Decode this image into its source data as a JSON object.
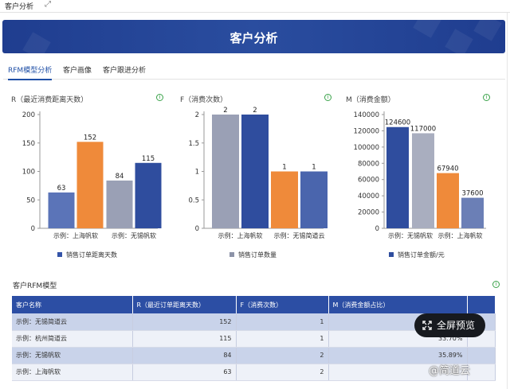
{
  "topbar": {
    "title": "客户分析",
    "expand_icon": "expand-icon"
  },
  "banner": {
    "title": "客户分析"
  },
  "tabs": [
    {
      "label": "RFM模型分析",
      "active": true
    },
    {
      "label": "客户画像",
      "active": false
    },
    {
      "label": "客户跟进分析",
      "active": false
    }
  ],
  "colors": {
    "blue": "#3454a8",
    "orange": "#ef8a3a",
    "gray": "#9aa0b5",
    "header": "#2c4ea4"
  },
  "chart_data": [
    {
      "type": "bar",
      "title": "R（最近消费距离天数）",
      "categories": [
        "示例：上海帆软",
        "示例：无锡帆软"
      ],
      "bar_values": [
        63,
        152,
        84,
        115
      ],
      "bar_colors": [
        "#5b74b8",
        "#ef8a3a",
        "#9aa0b5",
        "#2f4d9e"
      ],
      "ylim": [
        0,
        200
      ],
      "yticks": [
        "0",
        "50",
        "100",
        "150",
        "200"
      ],
      "legend": "销售订单距离天数"
    },
    {
      "type": "bar",
      "title": "F（消费次数）",
      "categories": [
        "示例：上海帆软",
        "示例：无锡简道云"
      ],
      "bar_values": [
        2,
        2,
        1,
        1
      ],
      "bar_colors": [
        "#9aa0b5",
        "#2f4d9e",
        "#ef8a3a",
        "#4a65ad"
      ],
      "ylim": [
        0,
        2
      ],
      "yticks": [
        "0",
        "0.5",
        "1",
        "1.5",
        "2"
      ],
      "legend": "销售订单数量"
    },
    {
      "type": "bar",
      "title": "M（消费金额）",
      "categories": [
        "示例：无锡帆软",
        "示例：上海帆软"
      ],
      "bar_values": [
        124600,
        117000,
        67940,
        37600
      ],
      "bar_colors": [
        "#2f4d9e",
        "#a9aebf",
        "#ef8a3a",
        "#6b7fb6"
      ],
      "ylim": [
        0,
        140000
      ],
      "yticks": [
        "0",
        "20000",
        "40000",
        "60000",
        "80000",
        "100000",
        "120000",
        "140000"
      ],
      "legend": "销售订单金额/元"
    }
  ],
  "rfm": {
    "section_title": "客户RFM模型",
    "columns": [
      "客户名称",
      "R（最近订单距离天数）",
      "F（消费次数）",
      "M（消费金额占比）",
      ""
    ],
    "rows": [
      [
        "示例：无锡简道云",
        "152",
        "1",
        ""
      ],
      [
        "示例：杭州简道云",
        "115",
        "1",
        "33.70%"
      ],
      [
        "示例：无锡帆软",
        "84",
        "2",
        "35.89%"
      ],
      [
        "示例：上海帆软",
        "63",
        "2",
        ""
      ]
    ]
  },
  "overlay": {
    "fullscreen_label": "全屏预览",
    "watermark": "@简道云"
  }
}
